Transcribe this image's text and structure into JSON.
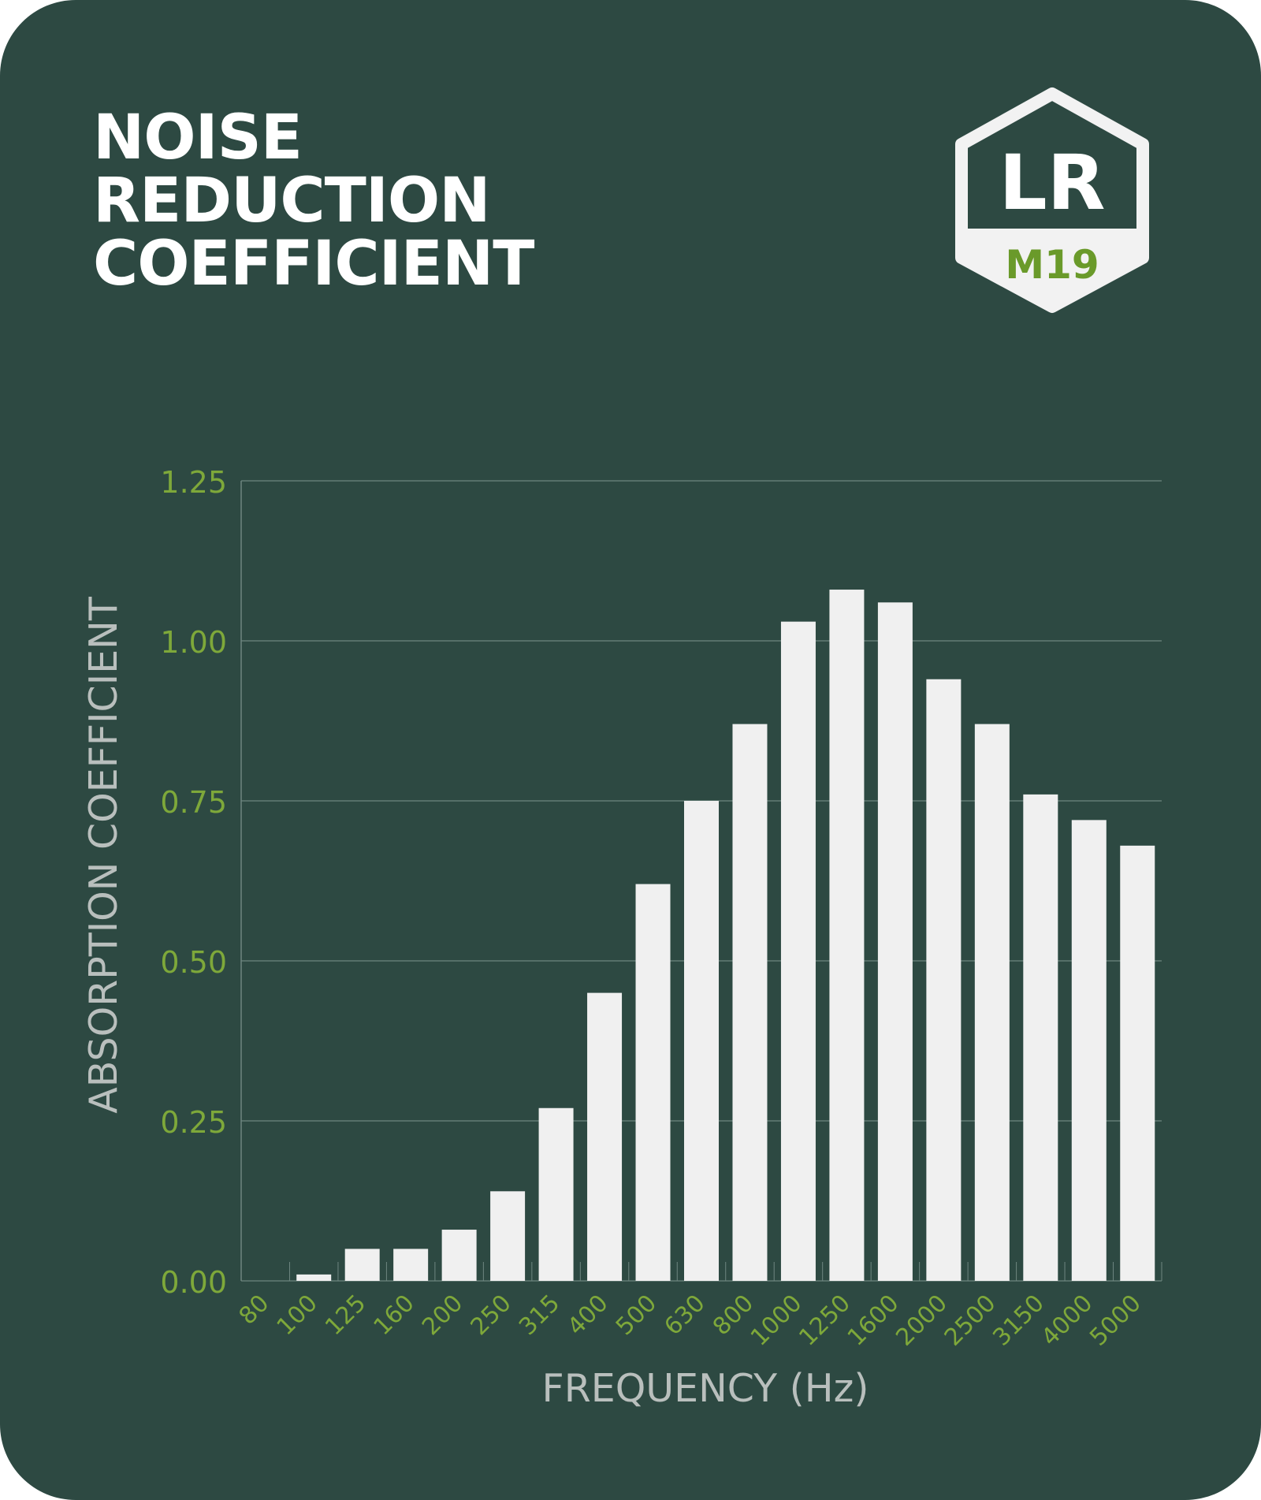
{
  "title": {
    "line1": "NOISE",
    "line2": "REDUCTION",
    "line3": "COEFFICIENT"
  },
  "badge": {
    "main": "LR",
    "sub": "M19",
    "colors": {
      "outline": "#f2f2f2",
      "panel": "#f2f2f2",
      "sub_text": "#6a9a2a"
    }
  },
  "colors": {
    "background": "#2d4942",
    "bar": "#f0f0f0",
    "tick_label": "#7ea83a",
    "axis_title": "#b9bfbd",
    "grid": "#6e8680"
  },
  "chart_data": {
    "type": "bar",
    "xlabel": "FREQUENCY (Hz)",
    "ylabel": "ABSORPTION COEFFICIENT",
    "ylim": [
      0,
      1.25
    ],
    "yticks": [
      "0.00",
      "0.25",
      "0.50",
      "0.75",
      "1.00",
      "1.25"
    ],
    "grid": true,
    "categories": [
      "80",
      "100",
      "125",
      "160",
      "200",
      "250",
      "315",
      "400",
      "500",
      "630",
      "800",
      "1000",
      "1250",
      "1600",
      "2000",
      "2500",
      "3150",
      "4000",
      "5000"
    ],
    "values": [
      0.0,
      0.01,
      0.05,
      0.05,
      0.08,
      0.14,
      0.27,
      0.45,
      0.62,
      0.75,
      0.87,
      1.03,
      1.08,
      1.06,
      0.94,
      0.87,
      0.76,
      0.72,
      0.68
    ]
  }
}
